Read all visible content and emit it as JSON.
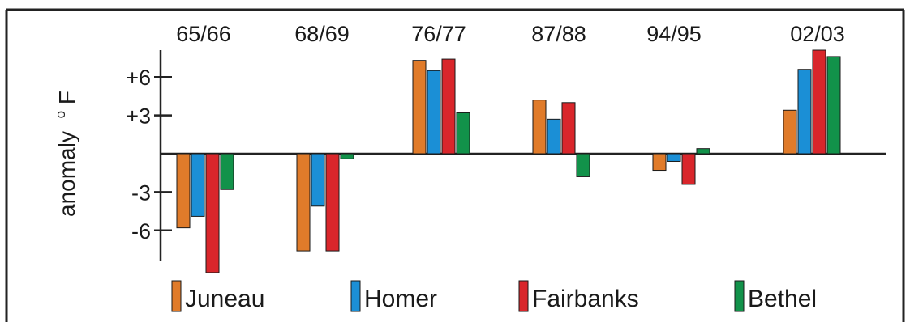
{
  "chart_data": {
    "type": "bar",
    "categories": [
      "65/66",
      "68/69",
      "76/77",
      "87/88",
      "94/95",
      "02/03"
    ],
    "ylabel": "anomaly °F",
    "ylabel_parts": {
      "text": "anomaly",
      "degree": "o",
      "unit": "F"
    },
    "ylim": [
      -8.5,
      8.5
    ],
    "yticks": [
      {
        "value": 6,
        "label": "+6"
      },
      {
        "value": 3,
        "label": "+3"
      },
      {
        "value": -3,
        "label": "-3"
      },
      {
        "value": -6,
        "label": "-6"
      }
    ],
    "grid": false,
    "legend_position": "bottom",
    "series": [
      {
        "name": "Juneau",
        "color": "#e07b2a",
        "values": [
          -5.8,
          -7.6,
          7.3,
          4.2,
          -1.3,
          3.4
        ]
      },
      {
        "name": "Homer",
        "color": "#1b8fd6",
        "values": [
          -4.9,
          -4.1,
          6.5,
          2.7,
          -0.6,
          6.6
        ]
      },
      {
        "name": "Fairbanks",
        "color": "#d9262b",
        "values": [
          -9.3,
          -7.6,
          7.4,
          4.0,
          -2.4,
          8.1
        ]
      },
      {
        "name": "Bethel",
        "color": "#12924a",
        "values": [
          -2.8,
          -0.4,
          3.2,
          -1.8,
          0.4,
          7.6
        ]
      }
    ]
  }
}
